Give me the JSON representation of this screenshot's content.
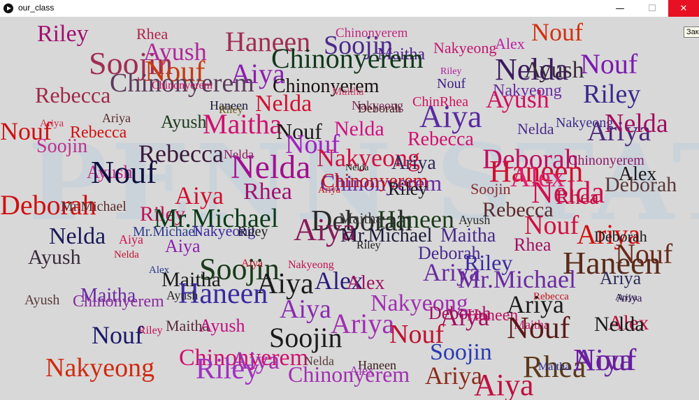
{
  "window": {
    "title": "our_class",
    "minimize": "—",
    "maximize": "☐",
    "close": "✕"
  },
  "tooltip": "Зак",
  "watermark": "PENN STATE",
  "words": [
    {
      "t": "Riley",
      "c": "#a0106e"
    },
    {
      "t": "Rhea",
      "c": "#b22248"
    },
    {
      "t": "Haneen",
      "c": "#a02e52"
    },
    {
      "t": "Chinonyerem",
      "c": "#c02880"
    },
    {
      "t": "Nouf",
      "c": "#d23010"
    },
    {
      "t": "Soojin",
      "c": "#4c2a8c"
    },
    {
      "t": "Maitha",
      "c": "#4a1a8a"
    },
    {
      "t": "Nakyeong",
      "c": "#c0156e"
    },
    {
      "t": "Alex",
      "c": "#b820a0"
    },
    {
      "t": "Soojin",
      "c": "#a02e52"
    },
    {
      "t": "Ayush",
      "c": "#b0289a"
    },
    {
      "t": "Nouf",
      "c": "#c83a10"
    },
    {
      "t": "Chinonyerem",
      "c": "#10381a"
    },
    {
      "t": "Nelda",
      "c": "#3a1a5e"
    },
    {
      "t": "Ayush",
      "c": "#3a2a3a"
    },
    {
      "t": "Nouf",
      "c": "#7a1ab0"
    },
    {
      "t": "Riley",
      "c": "#b020a0"
    },
    {
      "t": "Aiya",
      "c": "#8a20b0"
    },
    {
      "t": "Rebecca",
      "c": "#9e2a48"
    },
    {
      "t": "Chinonyerem",
      "c": "#5a3a5a"
    },
    {
      "t": "Chinonyerem",
      "c": "#1a1010"
    },
    {
      "t": "Riley",
      "c": "#3a2a8c"
    },
    {
      "t": "Nakyeong",
      "c": "#6a2aa0"
    },
    {
      "t": "Ayush",
      "c": "#d01060"
    },
    {
      "t": "Nouf",
      "c": "#3a1a80"
    },
    {
      "t": "Maitha",
      "c": "#d03a6a"
    },
    {
      "t": "Haneen",
      "c": "#1a1a3a"
    },
    {
      "t": "Nelda",
      "c": "#d01030"
    },
    {
      "t": "Nakyeong",
      "c": "#7a2a5a"
    },
    {
      "t": "Deborah",
      "c": "#4a1a1a"
    },
    {
      "t": "ChinRhea",
      "c": "#d01060"
    },
    {
      "t": "Chinonyerem",
      "c": "#c0105a"
    },
    {
      "t": "Aiya",
      "c": "#5a2aa0"
    },
    {
      "t": "Riley",
      "c": "#6a5a1a"
    },
    {
      "t": "Ariya",
      "c": "#5a2a2a"
    },
    {
      "t": "Ayush",
      "c": "#1a3a1a"
    },
    {
      "t": "Maitha",
      "c": "#d0106e"
    },
    {
      "t": "Nouf",
      "c": "#1a1a1a"
    },
    {
      "t": "Nelda",
      "c": "#d01080"
    },
    {
      "t": "Nelda",
      "c": "#4a2a8c"
    },
    {
      "t": "Nakyeong",
      "c": "#3a2a8c"
    },
    {
      "t": "Ariya",
      "c": "#4a2a7a"
    },
    {
      "t": "Nelda",
      "c": "#a01060"
    },
    {
      "t": "Nouf",
      "c": "#d01010"
    },
    {
      "t": "Ariya",
      "c": "#d02a4a"
    },
    {
      "t": "Rebecca",
      "c": "#d01010"
    },
    {
      "t": "Soojin",
      "c": "#c0308a"
    },
    {
      "t": "Rebecca",
      "c": "#d0106e"
    },
    {
      "t": "Nouf",
      "c": "#a020c0"
    },
    {
      "t": "Rebecca",
      "c": "#3a1a3a"
    },
    {
      "t": "Nelda",
      "c": "#8a1a5a"
    },
    {
      "t": "Nakyeong",
      "c": "#d01040"
    },
    {
      "t": "Ariya",
      "c": "#2a2a5a"
    },
    {
      "t": "Deborah",
      "c": "#c01060"
    },
    {
      "t": "Chinonyerem",
      "c": "#8a1a6a"
    },
    {
      "t": "Ayush",
      "c": "#c02a8a"
    },
    {
      "t": "Nouf",
      "c": "#101040"
    },
    {
      "t": "Nelda",
      "c": "#1a1a1a"
    },
    {
      "t": "Nelda",
      "c": "#a01090"
    },
    {
      "t": "Haneen",
      "c": "#d01030"
    },
    {
      "t": "Alex",
      "c": "#e02070"
    },
    {
      "t": "Alex",
      "c": "#1a1a1a"
    },
    {
      "t": "Chinonyerem",
      "c": "#6a2aa0"
    },
    {
      "t": "Nelda",
      "c": "#d01050"
    },
    {
      "t": "Deborah",
      "c": "#5a3a3a"
    },
    {
      "t": "Deborah",
      "c": "#d01010"
    },
    {
      "t": "Aiya",
      "c": "#d01030"
    },
    {
      "t": "Rhea",
      "c": "#a0106e"
    },
    {
      "t": "Ariya",
      "c": "#d01010"
    },
    {
      "t": "Chinonyerem",
      "c": "#c01020"
    },
    {
      "t": "Riley",
      "c": "#1a1a1a"
    },
    {
      "t": "Soojin",
      "c": "#8a2a2a"
    },
    {
      "t": "Rhea",
      "c": "#c01040"
    },
    {
      "t": "Mr.Michael",
      "c": "#5a2a2a"
    },
    {
      "t": "Riley",
      "c": "#c01050"
    },
    {
      "t": "Mr.Michael",
      "c": "#0a3a1a"
    },
    {
      "t": "Deborah",
      "c": "#2a2a2a"
    },
    {
      "t": "Haneen",
      "c": "#1a3a1a"
    },
    {
      "t": "Rebecca",
      "c": "#5a2a2a"
    },
    {
      "t": "Nelda",
      "c": "#1a1a5a"
    },
    {
      "t": "Mr.Michael",
      "c": "#2a3a8c"
    },
    {
      "t": "Nakyeong",
      "c": "#3a2aa0"
    },
    {
      "t": "Riley",
      "c": "#1a1a1a"
    },
    {
      "t": "Aiya",
      "c": "#8a1a5a"
    },
    {
      "t": "Maitha",
      "c": "#3a3a3a"
    },
    {
      "t": "Ayush",
      "c": "#2a2a2a"
    },
    {
      "t": "Mr.Michael",
      "c": "#1a1a3a"
    },
    {
      "t": "Maitha",
      "c": "#4a2a8a"
    },
    {
      "t": "Nouf",
      "c": "#d01040"
    },
    {
      "t": "Ariya",
      "c": "#d01010"
    },
    {
      "t": "Aiya",
      "c": "#d01050"
    },
    {
      "t": "Aiya",
      "c": "#8a20b0"
    },
    {
      "t": "Riley",
      "c": "#1a1a1a"
    },
    {
      "t": "Rhea",
      "c": "#a01060"
    },
    {
      "t": "Deborah",
      "c": "#1a1a1a"
    },
    {
      "t": "Nouf",
      "c": "#6a2a1a"
    },
    {
      "t": "Ayush",
      "c": "#3a2a3a"
    },
    {
      "t": "Nelda",
      "c": "#c01030"
    },
    {
      "t": "Soojin",
      "c": "#1a3a1a"
    },
    {
      "t": "Aiya",
      "c": "#c01020"
    },
    {
      "t": "Nakyeong",
      "c": "#c01050"
    },
    {
      "t": "Deborah",
      "c": "#4a2a8c"
    },
    {
      "t": "Riley",
      "c": "#3a2aa0"
    },
    {
      "t": "Haneen",
      "c": "#5a2a1a"
    },
    {
      "t": "Alex",
      "c": "#2a3a8c"
    },
    {
      "t": "Maitha",
      "c": "#1a1a1a"
    },
    {
      "t": "Alex",
      "c": "#2a1a7a"
    },
    {
      "t": "Aiya",
      "c": "#1a1a1a"
    },
    {
      "t": "Alex",
      "c": "#a01060"
    },
    {
      "t": "Ariya",
      "c": "#2a2a5a"
    },
    {
      "t": "Ariya",
      "c": "#6a2aa0"
    },
    {
      "t": "Mr.Michael",
      "c": "#6a2aa0"
    },
    {
      "t": "Ariya",
      "c": "#1a1a3a"
    },
    {
      "t": "Haneen",
      "c": "#3a2aa0"
    },
    {
      "t": "Maitha",
      "c": "#6a2aa0"
    },
    {
      "t": "Ayush",
      "c": "#5a3a3a"
    },
    {
      "t": "Chinonyerem",
      "c": "#8a2aa0"
    },
    {
      "t": "Ayush",
      "c": "#2a2a2a"
    },
    {
      "t": "Rebecca",
      "c": "#c01020"
    },
    {
      "t": "Ariya",
      "c": "#1a1a1a"
    },
    {
      "t": "Ariya",
      "c": "#3a1a5a"
    },
    {
      "t": "Aiya",
      "c": "#8a2ab0"
    },
    {
      "t": "Nakyeong",
      "c": "#a030b0"
    },
    {
      "t": "Deborah",
      "c": "#a01060"
    },
    {
      "t": "Aiya",
      "c": "#a01060"
    },
    {
      "t": "Haneen",
      "c": "#c01060"
    },
    {
      "t": "Ariya",
      "c": "#a030b0"
    },
    {
      "t": "Maitha",
      "c": "#c01060"
    },
    {
      "t": "Nouf",
      "c": "#5a1a1a"
    },
    {
      "t": "Alex",
      "c": "#c01040"
    },
    {
      "t": "Nelda",
      "c": "#1a1a1a"
    },
    {
      "t": "Riley",
      "c": "#c01050"
    },
    {
      "t": "Maitha",
      "c": "#5a2a3a"
    },
    {
      "t": "Ayush",
      "c": "#c01080"
    },
    {
      "t": "Nouf",
      "c": "#1a1a6a"
    },
    {
      "t": "Nouf",
      "c": "#c01030"
    },
    {
      "t": "Soojin",
      "c": "#1a1a1a"
    },
    {
      "t": "Soojin",
      "c": "#2a3ab0"
    },
    {
      "t": "Nakyeong",
      "c": "#d02a10"
    },
    {
      "t": "Chinonyerem",
      "c": "#d0106e"
    },
    {
      "t": "Aiya",
      "c": "#a030b0"
    },
    {
      "t": "Riley",
      "c": "#a030c0"
    },
    {
      "t": "Aiya",
      "c": "#6a2aa0"
    },
    {
      "t": "Nelda",
      "c": "#5a3a3a"
    },
    {
      "t": "Haneen",
      "c": "#3a1a1a"
    },
    {
      "t": "Chinonyerem",
      "c": "#a030b0"
    },
    {
      "t": "Alex",
      "c": "#a030b0"
    },
    {
      "t": "Ariya",
      "c": "#8a2a1a"
    },
    {
      "t": "Aiya",
      "c": "#c01040"
    },
    {
      "t": "Rhea",
      "c": "#5a3a1a"
    },
    {
      "t": "Maitha",
      "c": "#2a2a8c"
    },
    {
      "t": "Nouf",
      "c": "#6a1aa0"
    }
  ]
}
